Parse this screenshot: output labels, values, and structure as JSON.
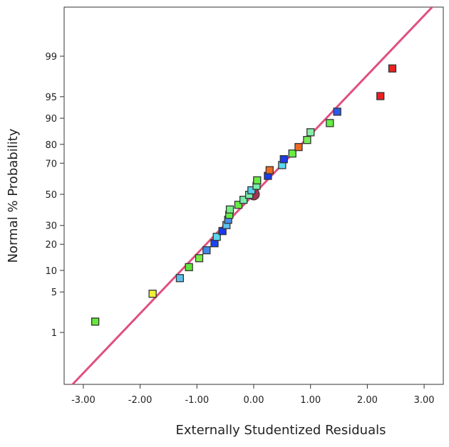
{
  "chart_data": {
    "type": "scatter",
    "title": "",
    "xlabel": "Externally Studentized Residuals",
    "ylabel": "Normal % Probability",
    "xlim": [
      -3.34,
      3.34
    ],
    "y_scale": "normal-probability",
    "x_ticks": [
      "-3.00",
      "-2.00",
      "-1.00",
      "0.00",
      "1.00",
      "2.00",
      "3.00"
    ],
    "x_tick_values": [
      -3,
      -2,
      -1,
      0,
      1,
      2,
      3
    ],
    "y_ticks": [
      "1",
      "5",
      "10",
      "20",
      "30",
      "50",
      "70",
      "80",
      "90",
      "95",
      "99"
    ],
    "y_tick_values": [
      1,
      5,
      10,
      20,
      30,
      50,
      70,
      80,
      90,
      95,
      99
    ],
    "grid": false,
    "reference_line": {
      "color": "#e0507f",
      "points": [
        [
          -3.34,
          0.04
        ],
        [
          3.34,
          99.96
        ]
      ]
    },
    "center_marker": {
      "residual": 0.0,
      "percent": 50,
      "color": "#a3344f"
    },
    "points": [
      {
        "residual": -2.79,
        "percent": 1.6,
        "color": "#66e83a"
      },
      {
        "residual": -1.78,
        "percent": 4.7,
        "color": "#eef03a"
      },
      {
        "residual": -1.3,
        "percent": 7.9,
        "color": "#5cc0ee"
      },
      {
        "residual": -1.14,
        "percent": 11.0,
        "color": "#5ee83a"
      },
      {
        "residual": -0.96,
        "percent": 14.1,
        "color": "#77ee44"
      },
      {
        "residual": -0.83,
        "percent": 17.3,
        "color": "#3f8ae8"
      },
      {
        "residual": -0.69,
        "percent": 20.5,
        "color": "#1a44ee"
      },
      {
        "residual": -0.65,
        "percent": 23.7,
        "color": "#5ad8ee"
      },
      {
        "residual": -0.55,
        "percent": 26.8,
        "color": "#1a3cee"
      },
      {
        "residual": -0.48,
        "percent": 30.2,
        "color": "#5cc4ee"
      },
      {
        "residual": -0.45,
        "percent": 33.4,
        "color": "#4a90ee"
      },
      {
        "residual": -0.43,
        "percent": 36.5,
        "color": "#66ee44"
      },
      {
        "residual": -0.42,
        "percent": 39.9,
        "color": "#77ee88"
      },
      {
        "residual": -0.27,
        "percent": 43.0,
        "color": "#66ee44"
      },
      {
        "residual": -0.18,
        "percent": 46.3,
        "color": "#77eeaa"
      },
      {
        "residual": -0.08,
        "percent": 49.7,
        "color": "#77eeaa"
      },
      {
        "residual": -0.04,
        "percent": 52.7,
        "color": "#55d0ee"
      },
      {
        "residual": 0.05,
        "percent": 55.7,
        "color": "#77eeaa"
      },
      {
        "residual": 0.06,
        "percent": 59.3,
        "color": "#66ee44"
      },
      {
        "residual": 0.25,
        "percent": 62.2,
        "color": "#1a3cee"
      },
      {
        "residual": 0.28,
        "percent": 65.8,
        "color": "#ee6a22"
      },
      {
        "residual": 0.5,
        "percent": 68.9,
        "color": "#5ad8ee"
      },
      {
        "residual": 0.53,
        "percent": 72.3,
        "color": "#1a3cee"
      },
      {
        "residual": 0.68,
        "percent": 75.4,
        "color": "#66ee44"
      },
      {
        "residual": 0.79,
        "percent": 78.7,
        "color": "#ee6a22"
      },
      {
        "residual": 0.94,
        "percent": 82.0,
        "color": "#77ee55"
      },
      {
        "residual": 1.0,
        "percent": 85.2,
        "color": "#88eeaa"
      },
      {
        "residual": 1.34,
        "percent": 88.5,
        "color": "#66ee44"
      },
      {
        "residual": 1.47,
        "percent": 91.8,
        "color": "#2a5cee"
      },
      {
        "residual": 2.23,
        "percent": 95.1,
        "color": "#ee2020"
      },
      {
        "residual": 2.44,
        "percent": 98.3,
        "color": "#ee2020"
      }
    ]
  }
}
